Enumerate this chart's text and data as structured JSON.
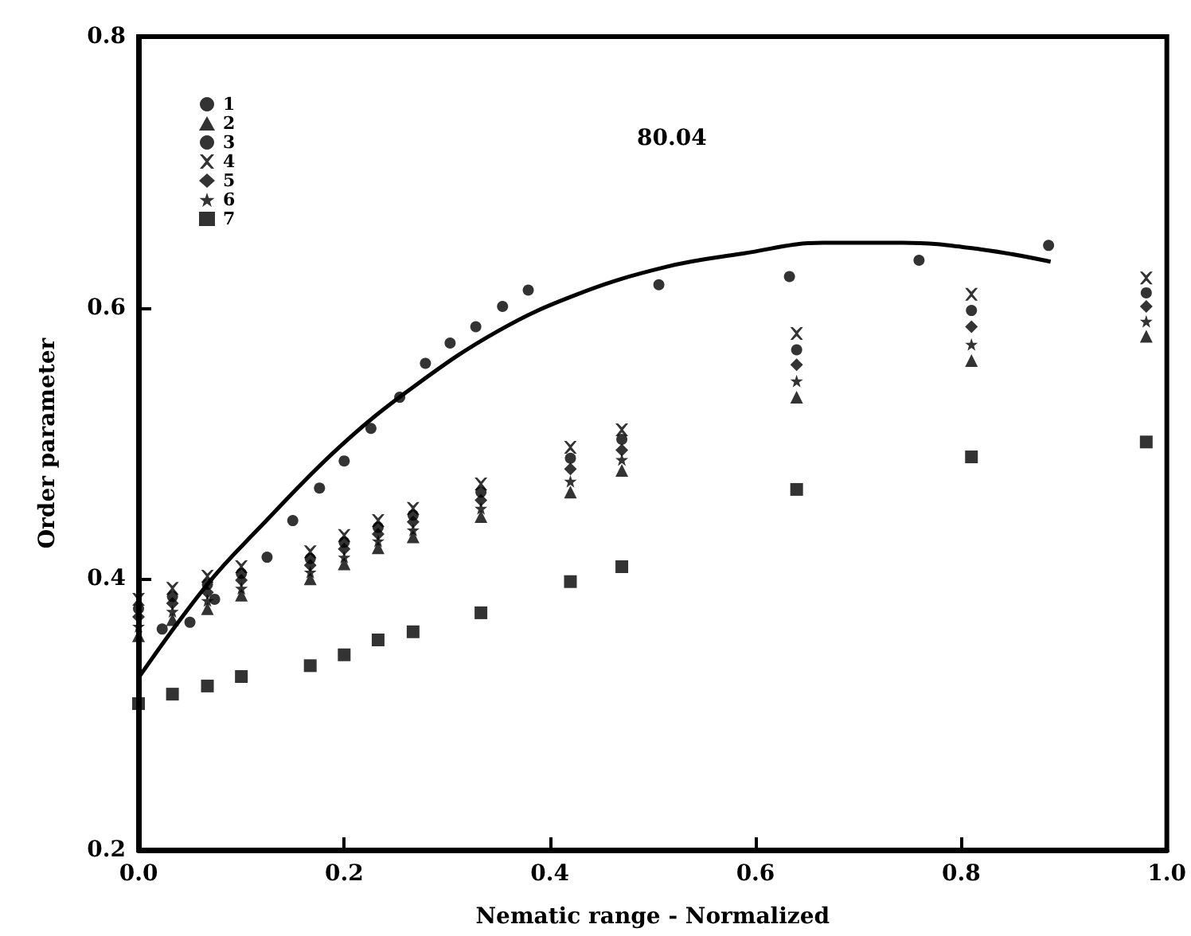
{
  "chart_data": {
    "type": "scatter",
    "xlabel": "Nematic range - Normalized",
    "ylabel": "Order parameter",
    "annotations": [
      "80.04"
    ],
    "xlim": [
      0,
      1
    ],
    "ylim": [
      0.2,
      0.8
    ],
    "xticks": [
      {
        "value": 0,
        "label": "0.0"
      },
      0.2,
      0.4,
      0.6,
      0.8,
      {
        "value": 1,
        "label": "1.0"
      }
    ],
    "yticks": [
      0.2,
      0.4,
      0.6,
      0.8
    ],
    "grid": false,
    "legend": "top left",
    "x": [
      0,
      0.033,
      0.067,
      0.1,
      0.167,
      0.2,
      0.233,
      0.267,
      0.333,
      0.42,
      0.47,
      0.64,
      0.81,
      0.98
    ],
    "series": [
      {
        "name": "1",
        "color": "#000000",
        "marker": "circle",
        "values": [
          0.378,
          0.387,
          0.396,
          0.404,
          0.415,
          0.427,
          0.438,
          0.447,
          0.464,
          0.489,
          0.503,
          0.569,
          0.598,
          0.611
        ]
      },
      {
        "name": "2",
        "color": "#000000",
        "marker": "triangle",
        "values": [
          0.358,
          0.37,
          0.378,
          0.388,
          0.4,
          0.411,
          0.423,
          0.431,
          0.446,
          0.464,
          0.48,
          0.534,
          0.561,
          0.579
        ]
      },
      {
        "name": "3",
        "color": "#000000",
        "marker": "circle",
        "x": [
          0.023,
          0.05,
          0.074,
          0.125,
          0.15,
          0.176,
          0.2,
          0.226,
          0.254,
          0.279,
          0.303,
          0.328,
          0.354,
          0.379,
          0.506,
          0.633,
          0.759,
          0.885
        ],
        "values": [
          0.363,
          0.368,
          0.385,
          0.416,
          0.443,
          0.467,
          0.487,
          0.511,
          0.534,
          0.559,
          0.574,
          0.586,
          0.601,
          0.613,
          0.617,
          0.623,
          0.635,
          0.646
        ]
      },
      {
        "name": "4",
        "color": "#000000",
        "marker": "cross",
        "values": [
          0.385,
          0.393,
          0.402,
          0.409,
          0.42,
          0.432,
          0.443,
          0.452,
          0.47,
          0.497,
          0.51,
          0.581,
          0.61,
          0.622
        ]
      },
      {
        "name": "5",
        "color": "#000000",
        "marker": "diamond",
        "values": [
          0.372,
          0.382,
          0.39,
          0.399,
          0.41,
          0.422,
          0.433,
          0.442,
          0.458,
          0.481,
          0.495,
          0.558,
          0.586,
          0.601
        ]
      },
      {
        "name": "6",
        "color": "#000000",
        "marker": "star",
        "values": [
          0.365,
          0.376,
          0.384,
          0.393,
          0.405,
          0.416,
          0.428,
          0.436,
          0.452,
          0.472,
          0.488,
          0.546,
          0.573,
          0.59
        ]
      },
      {
        "name": "7",
        "color": "#000000",
        "marker": "square",
        "values": [
          0.308,
          0.315,
          0.321,
          0.328,
          0.336,
          0.344,
          0.355,
          0.361,
          0.375,
          0.398,
          0.409,
          0.466,
          0.49,
          0.501
        ]
      },
      {
        "type": "line",
        "color": "#000000",
        "marker": "none",
        "line_style": "solid",
        "x": [
          0,
          0.067,
          0.118,
          0.195,
          0.268,
          0.35,
          0.427,
          0.512,
          0.588,
          0.666,
          0.743,
          0.82,
          0.887
        ],
        "values": [
          0.327,
          0.396,
          0.438,
          0.497,
          0.542,
          0.583,
          0.61,
          0.63,
          0.64,
          0.648,
          0.648,
          0.643,
          0.634
        ]
      }
    ]
  }
}
